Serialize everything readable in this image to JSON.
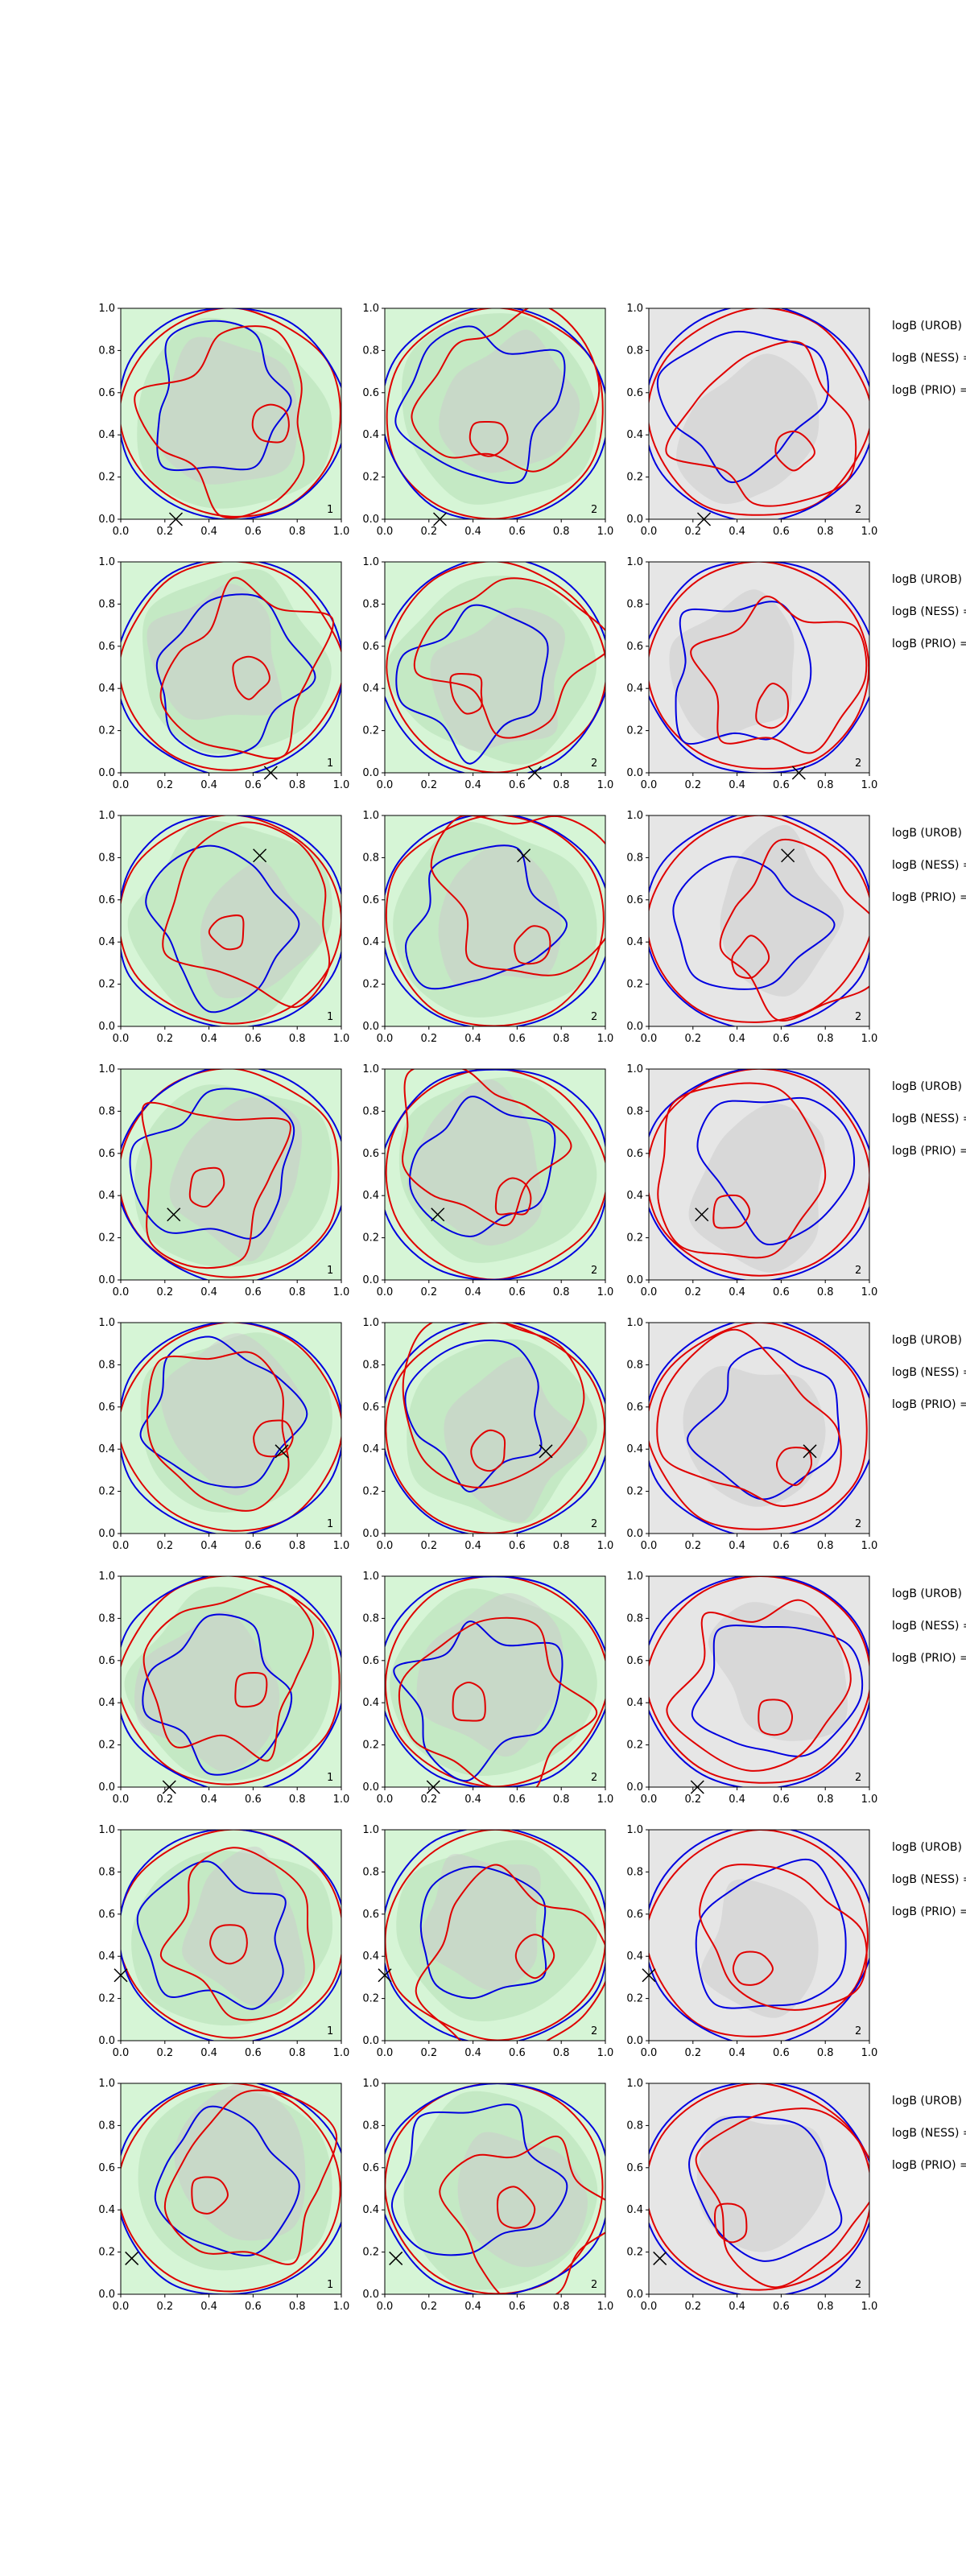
{
  "colors": {
    "background": "#ffffff",
    "fill_light_green": "#d6f5d6",
    "fill_mid_green": "#c2e8c2",
    "fill_gray": "#cccccc",
    "fill_light_gray": "#e6e6e6",
    "contour_red": "#e00000",
    "contour_blue": "#0000e0",
    "axis": "#000000",
    "marker": "#000000"
  },
  "chart_data": {
    "type": "contour-grid",
    "rows": 8,
    "cols": 3,
    "xlim": [
      0.0,
      1.0
    ],
    "ylim": [
      0.0,
      1.0
    ],
    "x_ticks": [
      "0.0",
      "0.2",
      "0.4",
      "0.6",
      "0.8",
      "1.0"
    ],
    "y_ticks": [
      "0.0",
      "0.2",
      "0.4",
      "0.6",
      "0.8",
      "1.0"
    ],
    "row_annotations": [
      "logB (UROB) =",
      "logB (NESS) =",
      "logB (PRIO) ="
    ],
    "panel_ids": [
      "1",
      "2",
      "2"
    ],
    "column_backgrounds": [
      "green",
      "green",
      "gray"
    ],
    "markers": [
      {
        "row": 1,
        "x": 0.25,
        "y": 0.0
      },
      {
        "row": 2,
        "x": 0.68,
        "y": 0.0
      },
      {
        "row": 3,
        "x": 0.63,
        "y": 0.81
      },
      {
        "row": 4,
        "x": 0.24,
        "y": 0.31
      },
      {
        "row": 5,
        "x": 0.73,
        "y": 0.39
      },
      {
        "row": 6,
        "x": 0.22,
        "y": 0.0
      },
      {
        "row": 7,
        "x": 0.0,
        "y": 0.31
      },
      {
        "row": 8,
        "x": 0.05,
        "y": 0.17
      }
    ]
  }
}
